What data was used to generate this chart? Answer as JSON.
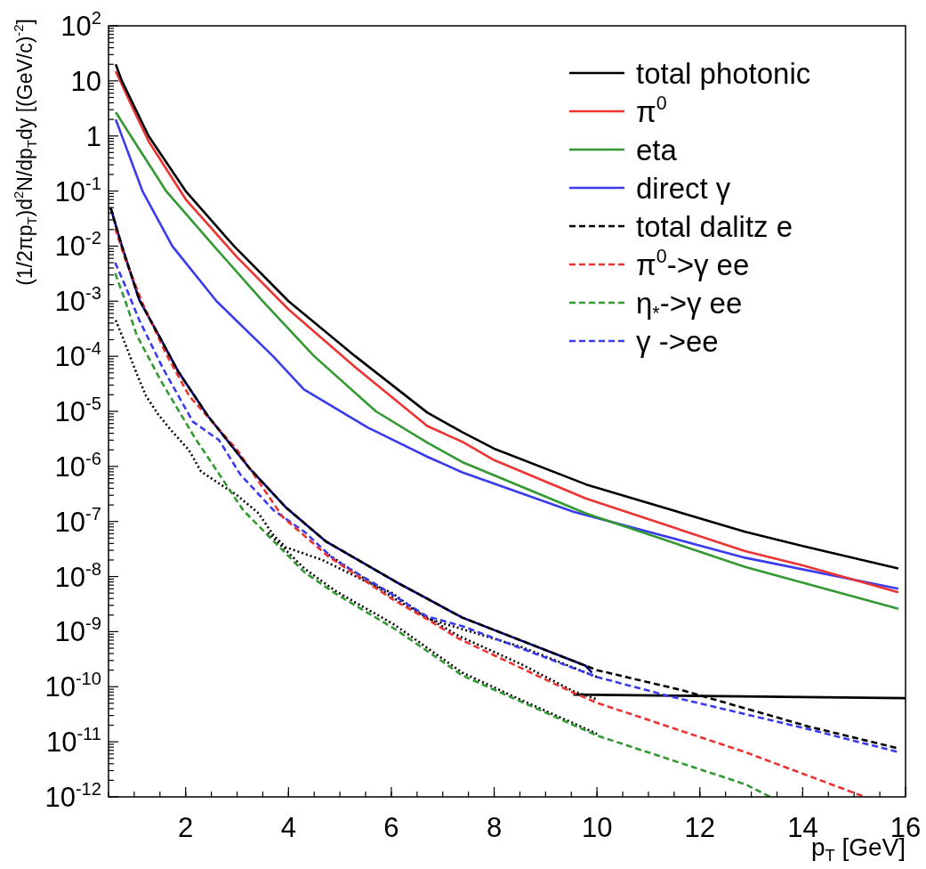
{
  "chart_data": {
    "type": "line",
    "xlabel": "p$_{T}$ [GeV]",
    "ylabel": "(1/2πp$_{T}$)d$^{2}$N/dp$_{T}$dy [(GeV/c)$^{-2}$]",
    "log": "y",
    "grid": false,
    "legend": "top right",
    "marker": "none",
    "xlim": [
      0.5,
      16
    ],
    "xticks": [
      2,
      4,
      6,
      8,
      10,
      12,
      14,
      16
    ],
    "ylim": [
      1e-12,
      100
    ],
    "yticks": [
      {
        "value": 100,
        "label": "10$^{2}$"
      },
      10,
      1,
      {
        "value": 0.1,
        "label": "10$^{-1}$"
      },
      {
        "value": 0.01,
        "label": "10$^{-2}$"
      },
      {
        "value": 0.001,
        "label": "10$^{-3}$"
      },
      {
        "value": 0.0001,
        "label": "10$^{-4}$"
      },
      {
        "value": 1e-05,
        "label": "10$^{-5}$"
      },
      {
        "value": 1e-06,
        "label": "10$^{-6}$"
      },
      {
        "value": 1e-07,
        "label": "10$^{-7}$"
      },
      {
        "value": 1e-08,
        "label": "10$^{-8}$"
      },
      {
        "value": 1e-09,
        "label": "10$^{-9}$"
      },
      {
        "value": 1e-10,
        "label": "10$^{-10}$"
      },
      {
        "value": 1e-11,
        "label": "10$^{-11}$"
      },
      {
        "value": 1e-12,
        "label": "10$^{-12}$"
      }
    ],
    "series": [
      {
        "name": "total photonic",
        "color": "#000000",
        "line_style": "solid",
        "x": [
          0.64,
          0.76,
          1.28,
          2.0,
          2.94,
          4.0,
          5.3,
          6.7,
          7.38,
          8,
          9.79,
          12.88,
          14,
          15.86
        ],
        "values": [
          20,
          10,
          1,
          0.1,
          0.01,
          0.001,
          0.0001,
          9.5e-06,
          4.2e-06,
          2.1e-06,
          4.7e-07,
          6.5e-08,
          3.6e-08,
          1.4e-08
        ]
      },
      {
        "name": "π$^{0}$",
        "color": "#ee3333",
        "line_style": "solid",
        "x": [
          0.64,
          1.0,
          1.28,
          2.0,
          3.0,
          4.0,
          5.3,
          6.7,
          7.38,
          8,
          9.79,
          12.88,
          14,
          15.86
        ],
        "values": [
          15,
          2.8,
          0.8,
          0.071,
          0.0063,
          0.00071,
          6.3e-05,
          5.4e-06,
          2.8e-06,
          1.3e-06,
          2.6e-07,
          2.9e-08,
          1.6e-08,
          5.2e-09
        ]
      },
      {
        "name": "eta",
        "color": "#339933",
        "line_style": "solid",
        "x": [
          0.64,
          1.0,
          1.62,
          2.55,
          3.5,
          4.5,
          5.7,
          6.7,
          7.38,
          9.79,
          12.88,
          15.86
        ],
        "values": [
          2.7,
          0.8,
          0.1,
          0.01,
          0.001,
          0.0001,
          1e-05,
          2.7e-06,
          1.2e-06,
          1.4e-07,
          1.5e-08,
          2.6e-09
        ]
      },
      {
        "name": "direct γ",
        "color": "#3a3aee",
        "line_style": "solid",
        "x": [
          0.64,
          1.16,
          1.74,
          2.6,
          3.7,
          4.3,
          5.54,
          6.7,
          7.38,
          9.54,
          12.88,
          15.86
        ],
        "values": [
          2.0,
          0.1,
          0.01,
          0.001,
          0.0001,
          2.5e-05,
          5.1e-06,
          1.5e-06,
          7.8e-07,
          1.5e-07,
          2.2e-08,
          6e-09
        ]
      },
      {
        "name": "total dalitz e",
        "color": "#000000",
        "line_style": "dashed",
        "x": [
          0.54,
          0.76,
          1.1,
          1.51,
          1.85,
          2.43,
          3.24,
          3.95,
          4.72,
          6.08,
          6.69,
          7.38,
          9.78,
          10.0,
          11.64,
          14.11,
          15.86
        ],
        "values": [
          0.05,
          0.01,
          0.00105,
          0.00021,
          5.4e-05,
          8.3e-06,
          9.3e-07,
          1.8e-07,
          4.4e-08,
          8.1e-09,
          4e-09,
          1.8e-09,
          2.4e-10,
          2e-10,
          8.7e-11,
          1.9e-11,
          7.6e-12
        ]
      },
      {
        "name": "π$^{0}$->γ ee",
        "color": "#ee3333",
        "line_style": "dashed",
        "x": [
          0.63,
          0.82,
          1.16,
          1.62,
          2.07,
          3.0,
          3.89,
          4.78,
          6.02,
          6.69,
          7.32,
          9.54,
          10.0,
          12.88,
          14.98,
          15.2
        ],
        "values": [
          0.021,
          0.006,
          0.00093,
          0.00011,
          1.9e-05,
          2e-06,
          1.2e-07,
          2.3e-08,
          3.9e-09,
          1.7e-09,
          7.4e-10,
          7.8e-11,
          5.1e-11,
          6.5e-12,
          1.2e-12,
          1e-12
        ]
      },
      {
        "name": "η$_{*}$->γ ee",
        "color": "#339933",
        "line_style": "dashed",
        "x": [
          0.63,
          0.82,
          1.05,
          1.51,
          1.76,
          2.18,
          2.53,
          3.12,
          3.6,
          4.31,
          4.9,
          6.08,
          6.69,
          7.38,
          10.0,
          12.88,
          13.37
        ],
        "values": [
          0.0032,
          0.00105,
          0.00024,
          3.7e-05,
          1.5e-05,
          3.3e-06,
          1.07e-06,
          1.6e-07,
          5.6e-08,
          1.2e-08,
          5e-09,
          1.1e-09,
          4.5e-10,
          1.6e-10,
          1.3e-11,
          1.7e-12,
          1e-12
        ]
      },
      {
        "name": "γ ->ee",
        "color": "#3a3aee",
        "line_style": "dashed",
        "x": [
          0.63,
          0.82,
          1.1,
          1.56,
          2.14,
          2.65,
          3.06,
          3.71,
          4.31,
          4.9,
          5.78,
          6.69,
          7.38,
          10.0,
          11.39,
          14.11,
          15.86
        ],
        "values": [
          0.005,
          0.00195,
          0.00045,
          6e-05,
          6.5e-06,
          3e-06,
          7.2e-07,
          1.6e-07,
          6.5e-08,
          2e-08,
          6.5e-09,
          1.9e-09,
          1.26e-09,
          1.5e-10,
          6.8e-11,
          1.7e-11,
          6.5e-12
        ]
      },
      {
        "color": "#000080",
        "line_style": "solid",
        "x": [
          0.54,
          0.76,
          1.1,
          1.51,
          1.85,
          2.43,
          3.24,
          3.95,
          4.72,
          6.08,
          6.69,
          7.38,
          9.78,
          9.9
        ],
        "values": [
          0.05,
          0.01,
          0.00105,
          0.00021,
          5.4e-05,
          8.3e-06,
          9.3e-07,
          1.8e-07,
          4.4e-08,
          8.1e-09,
          4e-09,
          1.8e-09,
          2.4e-10,
          1.8e-10
        ]
      },
      {
        "color": "#000000",
        "line_style": "dotted",
        "x": [
          0.64,
          0.76,
          0.9,
          1.05,
          1.23,
          1.47,
          1.71,
          2.06,
          2.3,
          2.65,
          3.0,
          3.42,
          3.71,
          3.95,
          4.66,
          5.49,
          6.02,
          6.69,
          8.55,
          10.0
        ],
        "values": [
          0.00045,
          0.00024,
          0.00011,
          4.8e-05,
          1.9e-05,
          8.7e-06,
          4.6e-06,
          2e-06,
          8.1e-07,
          4.9e-07,
          3e-07,
          1.4e-07,
          5.6e-08,
          3.4e-08,
          2e-08,
          8.3e-09,
          5e-09,
          1.74e-09,
          5.2e-10,
          1.5e-10
        ]
      },
      {
        "color": "#000000",
        "line_style": "dotted",
        "x": [
          4.78,
          6.02,
          7.32,
          8.55,
          9.54,
          10.0
        ],
        "values": [
          2.5e-08,
          4.2e-09,
          8.3e-10,
          2.5e-10,
          8.3e-11,
          5.9e-11
        ]
      },
      {
        "color": "#000000",
        "line_style": "dotted",
        "x": [
          3.6,
          4.31,
          4.9,
          6.08,
          7.38,
          8.55,
          10.0
        ],
        "values": [
          6.3e-08,
          1.4e-08,
          5.6e-09,
          1.3e-09,
          1.8e-10,
          5.6e-11,
          1.4e-11
        ]
      },
      {
        "color": "#000000",
        "line_style": "solid",
        "x": [
          9.54,
          16
        ],
        "values": [
          7.2e-11,
          6.2e-11
        ]
      }
    ]
  }
}
